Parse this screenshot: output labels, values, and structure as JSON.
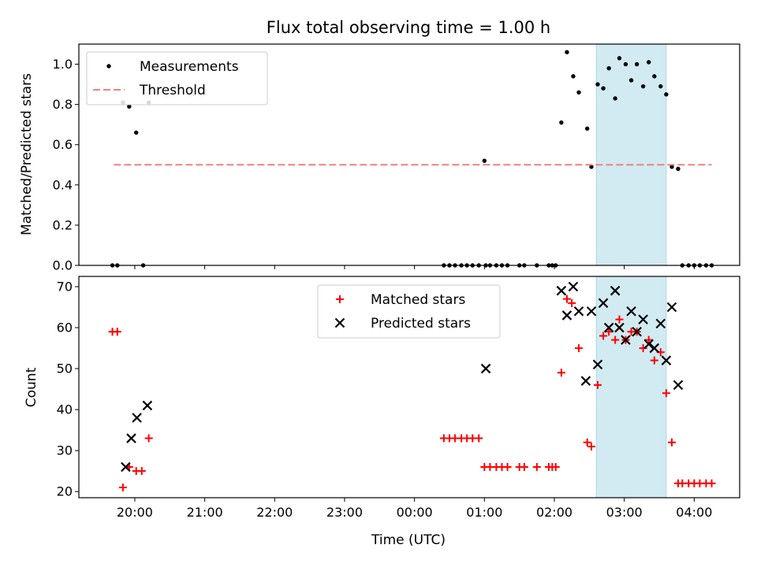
{
  "chart_data": [
    {
      "type": "scatter",
      "title": "Flux total observing time = 1.00 h",
      "xlabel": "",
      "ylabel": "Matched/Predicted stars",
      "xlim": [
        19.2,
        28.65
      ],
      "ylim": [
        0,
        1.1
      ],
      "yticks": [
        "0.0",
        "0.2",
        "0.4",
        "0.6",
        "0.8",
        "1.0"
      ],
      "ytick_values": [
        0,
        0.2,
        0.4,
        0.6,
        0.8,
        1.0
      ],
      "highlight_span": [
        26.6,
        27.6
      ],
      "highlight_color": "#add8e6",
      "legend_position": "upper left",
      "series": [
        {
          "name": "Measurements",
          "marker": "dot",
          "color": "#000000",
          "x": [
            19.68,
            19.75,
            19.83,
            19.92,
            20.02,
            20.12,
            20.2,
            24.42,
            24.5,
            24.58,
            24.67,
            24.75,
            24.83,
            24.92,
            25.0,
            25.02,
            25.08,
            25.17,
            25.25,
            25.33,
            25.5,
            25.57,
            25.75,
            25.92,
            25.97,
            26.02,
            26.1,
            26.18,
            26.27,
            26.35,
            26.47,
            26.53,
            26.62,
            26.7,
            26.78,
            26.87,
            26.93,
            27.02,
            27.1,
            27.18,
            27.27,
            27.35,
            27.43,
            27.52,
            27.6,
            27.68,
            27.77,
            27.83,
            27.92,
            28.0,
            28.08,
            28.17,
            28.25
          ],
          "y": [
            0,
            0,
            0.81,
            0.79,
            0.66,
            0,
            0.81,
            0,
            0,
            0,
            0,
            0,
            0,
            0,
            0.52,
            0,
            0,
            0,
            0,
            0,
            0,
            0,
            0,
            0,
            0,
            0,
            0.71,
            1.06,
            0.94,
            0.86,
            0.68,
            0.49,
            0.9,
            0.88,
            0.98,
            0.83,
            1.03,
            1.0,
            0.92,
            1.0,
            0.89,
            1.01,
            0.94,
            0.89,
            0.85,
            0.49,
            0.48,
            0,
            0,
            0,
            0,
            0,
            0
          ]
        },
        {
          "name": "Threshold",
          "marker": "dashed-line",
          "color": "#f08080",
          "x": [
            19.7,
            28.25
          ],
          "y": [
            0.5,
            0.5
          ]
        }
      ]
    },
    {
      "type": "scatter",
      "title": "",
      "xlabel": "Time (UTC)",
      "ylabel": "Count",
      "xlim": [
        19.2,
        28.65
      ],
      "ylim": [
        18.5,
        72.5
      ],
      "yticks": [
        "20",
        "30",
        "40",
        "50",
        "60",
        "70"
      ],
      "ytick_values": [
        20,
        30,
        40,
        50,
        60,
        70
      ],
      "xticks": [
        "20:00",
        "21:00",
        "22:00",
        "23:00",
        "00:00",
        "01:00",
        "02:00",
        "03:00",
        "04:00"
      ],
      "xtick_values": [
        20,
        21,
        22,
        23,
        24,
        25,
        26,
        27,
        28
      ],
      "highlight_span": [
        26.6,
        27.6
      ],
      "highlight_color": "#add8e6",
      "legend_position": "upper center",
      "series": [
        {
          "name": "Matched stars",
          "marker": "plus",
          "color": "#ff0000",
          "x": [
            19.68,
            19.75,
            19.83,
            19.92,
            20.02,
            20.1,
            20.2,
            24.42,
            24.5,
            24.58,
            24.67,
            24.75,
            24.83,
            24.92,
            25.0,
            25.08,
            25.17,
            25.25,
            25.33,
            25.5,
            25.57,
            25.75,
            25.92,
            25.97,
            26.02,
            26.1,
            26.18,
            26.25,
            26.35,
            26.47,
            26.53,
            26.62,
            26.7,
            26.78,
            26.87,
            26.93,
            27.02,
            27.1,
            27.18,
            27.27,
            27.35,
            27.43,
            27.52,
            27.6,
            27.68,
            27.77,
            27.83,
            27.92,
            28.0,
            28.08,
            28.17,
            28.25
          ],
          "y": [
            59,
            59,
            21,
            26,
            25,
            25,
            33,
            33,
            33,
            33,
            33,
            33,
            33,
            33,
            26,
            26,
            26,
            26,
            26,
            26,
            26,
            26,
            26,
            26,
            26,
            49,
            67,
            66,
            55,
            32,
            31,
            46,
            58,
            59,
            57,
            62,
            57,
            59,
            59,
            55,
            57,
            52,
            54,
            44,
            32,
            22,
            22,
            22,
            22,
            22,
            22,
            22
          ]
        },
        {
          "name": "Predicted stars",
          "marker": "x",
          "color": "#000000",
          "x": [
            19.87,
            19.95,
            20.03,
            20.18,
            25.02,
            26.1,
            26.18,
            26.27,
            26.35,
            26.45,
            26.53,
            26.62,
            26.7,
            26.78,
            26.87,
            26.93,
            27.02,
            27.1,
            27.18,
            27.27,
            27.35,
            27.43,
            27.52,
            27.6,
            27.68,
            27.77
          ],
          "y": [
            26,
            33,
            38,
            41,
            50,
            69,
            63,
            70,
            64,
            47,
            64,
            51,
            66,
            60,
            69,
            60,
            57,
            64,
            59,
            62,
            56,
            55,
            61,
            52,
            65,
            46
          ]
        }
      ]
    }
  ]
}
